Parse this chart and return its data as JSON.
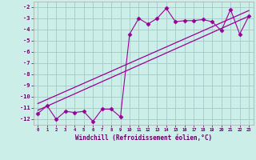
{
  "xlabel": "Windchill (Refroidissement éolien,°C)",
  "bg_color": "#cceee8",
  "grid_color": "#aacccc",
  "line_color": "#990099",
  "x_data": [
    0,
    1,
    2,
    3,
    4,
    5,
    6,
    7,
    8,
    9,
    10,
    11,
    12,
    13,
    14,
    15,
    16,
    17,
    18,
    19,
    20,
    21,
    22,
    23
  ],
  "y_data": [
    -11.5,
    -10.8,
    -12.0,
    -11.3,
    -11.4,
    -11.3,
    -12.2,
    -11.1,
    -11.1,
    -11.8,
    -4.4,
    -3.0,
    -3.5,
    -3.0,
    -2.1,
    -3.3,
    -3.2,
    -3.2,
    -3.1,
    -3.3,
    -4.1,
    -2.2,
    -4.4,
    -2.8
  ],
  "trend1_x": [
    0,
    23
  ],
  "trend1_y": [
    -11.2,
    -2.8
  ],
  "trend2_x": [
    0,
    23
  ],
  "trend2_y": [
    -10.6,
    -2.3
  ],
  "ylim": [
    -12.5,
    -1.5
  ],
  "xlim": [
    -0.5,
    23.5
  ],
  "yticks": [
    -12,
    -11,
    -10,
    -9,
    -8,
    -7,
    -6,
    -5,
    -4,
    -3,
    -2
  ],
  "xticks": [
    0,
    1,
    2,
    3,
    4,
    5,
    6,
    7,
    8,
    9,
    10,
    11,
    12,
    13,
    14,
    15,
    16,
    17,
    18,
    19,
    20,
    21,
    22,
    23
  ]
}
